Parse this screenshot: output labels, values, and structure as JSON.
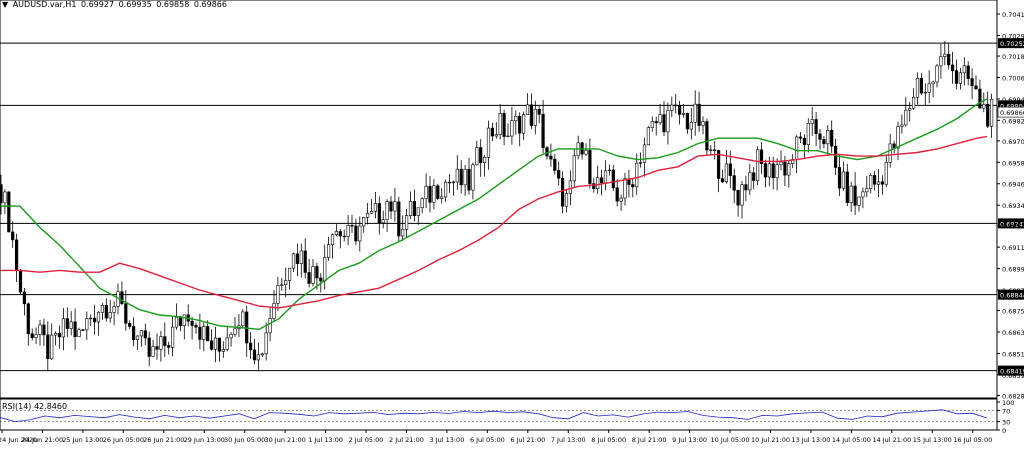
{
  "header": {
    "symbol": "AUDUSD.var,H1",
    "ohlc": [
      "0.69927",
      "0.69935",
      "0.69858",
      "0.69866"
    ]
  },
  "rsi_header": {
    "label": "RSI(14)",
    "value": "42.8460"
  },
  "colors": {
    "background": "#ffffff",
    "candle": "#000000",
    "ma_fast": "#1a9a1a",
    "ma_slow": "#e0203a",
    "rsi_line": "#2020c0",
    "levels": "#000000"
  },
  "chart_data": [
    {
      "type": "candlestick",
      "title": "AUDUSD.var,H1",
      "y_ticks": [
        "0.70415",
        "0.70295",
        "0.70180",
        "0.70060",
        "0.69940",
        "0.69820",
        "0.69705",
        "0.69585",
        "0.69465",
        "0.69345",
        "0.69230",
        "0.69110",
        "0.68990",
        "0.68870",
        "0.68755",
        "0.68635",
        "0.68515",
        "0.68395",
        "0.68280"
      ],
      "ylim": [
        0.6826,
        0.7046
      ],
      "x_tick_labels": [
        "24 Jun 2020",
        "24 Jun 21:00",
        "25 Jun 13:00",
        "26 Jun 05:00",
        "26 Jun 21:00",
        "29 Jun 13:00",
        "30 Jun 05:00",
        "30 Jun 21:00",
        "1 Jul 13:00",
        "2 Jul 05:00",
        "2 Jul 21:00",
        "3 Jul 13:00",
        "6 Jul 05:00",
        "6 Jul 21:00",
        "7 Jul 13:00",
        "8 Jul 05:00",
        "8 Jul 21:00",
        "9 Jul 13:00",
        "10 Jul 05:00",
        "10 Jul 21:00",
        "13 Jul 13:00",
        "14 Jul 05:00",
        "14 Jul 21:00",
        "15 Jul 13:00",
        "16 Jul 05:00"
      ],
      "horizontal_levels": [
        "0.70252",
        "0.69904",
        "0.69243",
        "0.68844",
        "0.68419"
      ],
      "current_price": "0.69866",
      "close_path": [
        [
          0,
          0.6946
        ],
        [
          10,
          0.6924
        ],
        [
          20,
          0.6888
        ],
        [
          30,
          0.6864
        ],
        [
          40,
          0.686
        ],
        [
          50,
          0.6852
        ],
        [
          60,
          0.6862
        ],
        [
          70,
          0.6868
        ],
        [
          80,
          0.686
        ],
        [
          90,
          0.6872
        ],
        [
          100,
          0.6878
        ],
        [
          110,
          0.688
        ],
        [
          120,
          0.6878
        ],
        [
          130,
          0.6868
        ],
        [
          140,
          0.6858
        ],
        [
          150,
          0.685
        ],
        [
          160,
          0.6853
        ],
        [
          170,
          0.686
        ],
        [
          180,
          0.687
        ],
        [
          190,
          0.6876
        ],
        [
          200,
          0.6866
        ],
        [
          210,
          0.6856
        ],
        [
          220,
          0.6853
        ],
        [
          230,
          0.6866
        ],
        [
          240,
          0.6874
        ],
        [
          250,
          0.6862
        ],
        [
          260,
          0.6848
        ],
        [
          270,
          0.6872
        ],
        [
          280,
          0.6892
        ],
        [
          290,
          0.6904
        ],
        [
          300,
          0.6908
        ],
        [
          310,
          0.6898
        ],
        [
          320,
          0.6894
        ],
        [
          330,
          0.692
        ],
        [
          340,
          0.692
        ],
        [
          350,
          0.6916
        ],
        [
          360,
          0.6922
        ],
        [
          370,
          0.6926
        ],
        [
          380,
          0.693
        ],
        [
          390,
          0.6938
        ],
        [
          400,
          0.6924
        ],
        [
          410,
          0.693
        ],
        [
          420,
          0.6932
        ],
        [
          430,
          0.694
        ],
        [
          440,
          0.6946
        ],
        [
          450,
          0.6948
        ],
        [
          460,
          0.6948
        ],
        [
          470,
          0.6946
        ],
        [
          480,
          0.6962
        ],
        [
          490,
          0.6974
        ],
        [
          500,
          0.698
        ],
        [
          510,
          0.6974
        ],
        [
          520,
          0.6982
        ],
        [
          530,
          0.6986
        ],
        [
          540,
          0.6982
        ],
        [
          550,
          0.696
        ],
        [
          560,
          0.6944
        ],
        [
          570,
          0.6936
        ],
        [
          580,
          0.6968
        ],
        [
          590,
          0.6956
        ],
        [
          600,
          0.6946
        ],
        [
          610,
          0.6948
        ],
        [
          620,
          0.694
        ],
        [
          630,
          0.6944
        ],
        [
          640,
          0.696
        ],
        [
          650,
          0.6974
        ],
        [
          660,
          0.6982
        ],
        [
          670,
          0.6984
        ],
        [
          680,
          0.6986
        ],
        [
          690,
          0.6982
        ],
        [
          700,
          0.6984
        ],
        [
          710,
          0.6964
        ],
        [
          720,
          0.6958
        ],
        [
          730,
          0.695
        ],
        [
          740,
          0.694
        ],
        [
          750,
          0.695
        ],
        [
          760,
          0.6958
        ],
        [
          770,
          0.6952
        ],
        [
          780,
          0.6958
        ],
        [
          790,
          0.6956
        ],
        [
          800,
          0.6968
        ],
        [
          810,
          0.6974
        ],
        [
          820,
          0.6976
        ],
        [
          830,
          0.6972
        ],
        [
          840,
          0.695
        ],
        [
          850,
          0.6942
        ],
        [
          860,
          0.6935
        ],
        [
          870,
          0.6948
        ],
        [
          880,
          0.6946
        ],
        [
          890,
          0.696
        ],
        [
          900,
          0.6972
        ],
        [
          910,
          0.6986
        ],
        [
          920,
          0.7004
        ],
        [
          930,
          0.6998
        ],
        [
          940,
          0.701
        ],
        [
          950,
          0.7022
        ],
        [
          960,
          0.7004
        ],
        [
          970,
          0.7006
        ],
        [
          980,
          0.6994
        ],
        [
          990,
          0.6986
        ]
      ],
      "series": [
        {
          "ma": [
            [
              0,
              0.6934
            ],
            [
              20,
              0.6934
            ],
            [
              40,
              0.6922
            ],
            [
              60,
              0.6912
            ],
            [
              80,
              0.69
            ],
            [
              100,
              0.6888
            ],
            [
              120,
              0.6882
            ],
            [
              140,
              0.6876
            ],
            [
              160,
              0.6873
            ],
            [
              180,
              0.6872
            ],
            [
              200,
              0.687
            ],
            [
              220,
              0.6867
            ],
            [
              240,
              0.6866
            ],
            [
              260,
              0.6865
            ],
            [
              280,
              0.6871
            ],
            [
              300,
              0.6882
            ],
            [
              320,
              0.689
            ],
            [
              340,
              0.6898
            ],
            [
              360,
              0.6902
            ],
            [
              380,
              0.6909
            ],
            [
              400,
              0.6914
            ],
            [
              420,
              0.692
            ],
            [
              440,
              0.6926
            ],
            [
              460,
              0.6932
            ],
            [
              480,
              0.6938
            ],
            [
              500,
              0.6946
            ],
            [
              520,
              0.6954
            ],
            [
              540,
              0.6962
            ],
            [
              560,
              0.6966
            ],
            [
              580,
              0.6966
            ],
            [
              600,
              0.6966
            ],
            [
              620,
              0.6962
            ],
            [
              640,
              0.696
            ],
            [
              660,
              0.6961
            ],
            [
              680,
              0.6964
            ],
            [
              700,
              0.6969
            ],
            [
              720,
              0.6972
            ],
            [
              740,
              0.6972
            ],
            [
              760,
              0.6972
            ],
            [
              780,
              0.6969
            ],
            [
              800,
              0.6965
            ],
            [
              820,
              0.6965
            ],
            [
              840,
              0.6962
            ],
            [
              860,
              0.696
            ],
            [
              880,
              0.6962
            ],
            [
              900,
              0.6967
            ],
            [
              920,
              0.6972
            ],
            [
              940,
              0.6977
            ],
            [
              960,
              0.6983
            ],
            [
              980,
              0.6991
            ],
            [
              990,
              0.6994
            ]
          ]
        },
        {
          "ma": [
            [
              0,
              0.6898
            ],
            [
              20,
              0.6898
            ],
            [
              40,
              0.6897
            ],
            [
              60,
              0.6898
            ],
            [
              80,
              0.6897
            ],
            [
              100,
              0.6897
            ],
            [
              120,
              0.6902
            ],
            [
              140,
              0.6899
            ],
            [
              160,
              0.6895
            ],
            [
              180,
              0.6891
            ],
            [
              200,
              0.6887
            ],
            [
              220,
              0.6884
            ],
            [
              240,
              0.6881
            ],
            [
              260,
              0.6878
            ],
            [
              280,
              0.6877
            ],
            [
              300,
              0.6879
            ],
            [
              320,
              0.6881
            ],
            [
              340,
              0.6884
            ],
            [
              360,
              0.6886
            ],
            [
              380,
              0.6888
            ],
            [
              400,
              0.6893
            ],
            [
              420,
              0.6898
            ],
            [
              440,
              0.6904
            ],
            [
              460,
              0.6909
            ],
            [
              480,
              0.6915
            ],
            [
              500,
              0.6922
            ],
            [
              520,
              0.6932
            ],
            [
              540,
              0.6938
            ],
            [
              560,
              0.6942
            ],
            [
              580,
              0.6945
            ],
            [
              600,
              0.6946
            ],
            [
              620,
              0.6948
            ],
            [
              640,
              0.695
            ],
            [
              660,
              0.6954
            ],
            [
              680,
              0.6956
            ],
            [
              700,
              0.6962
            ],
            [
              720,
              0.6963
            ],
            [
              740,
              0.6961
            ],
            [
              760,
              0.6959
            ],
            [
              780,
              0.6959
            ],
            [
              800,
              0.696
            ],
            [
              820,
              0.6962
            ],
            [
              840,
              0.6963
            ],
            [
              860,
              0.6962
            ],
            [
              880,
              0.6962
            ],
            [
              900,
              0.6963
            ],
            [
              920,
              0.6964
            ],
            [
              940,
              0.6966
            ],
            [
              960,
              0.6969
            ],
            [
              980,
              0.6972
            ],
            [
              990,
              0.6973
            ]
          ]
        }
      ]
    },
    {
      "type": "line",
      "title": "RSI(14)",
      "y_ticks": [
        "100",
        "70",
        "30",
        "0"
      ],
      "ylim": [
        0,
        100
      ],
      "levels": [
        70,
        30
      ],
      "values": [
        [
          0,
          45
        ],
        [
          15,
          30
        ],
        [
          30,
          36
        ],
        [
          45,
          50
        ],
        [
          60,
          44
        ],
        [
          75,
          52
        ],
        [
          90,
          48
        ],
        [
          105,
          44
        ],
        [
          120,
          55
        ],
        [
          135,
          46
        ],
        [
          150,
          40
        ],
        [
          165,
          52
        ],
        [
          180,
          44
        ],
        [
          195,
          50
        ],
        [
          210,
          42
        ],
        [
          225,
          50
        ],
        [
          240,
          58
        ],
        [
          255,
          40
        ],
        [
          270,
          62
        ],
        [
          285,
          60
        ],
        [
          300,
          56
        ],
        [
          315,
          50
        ],
        [
          330,
          62
        ],
        [
          345,
          58
        ],
        [
          360,
          60
        ],
        [
          375,
          63
        ],
        [
          390,
          55
        ],
        [
          405,
          60
        ],
        [
          420,
          58
        ],
        [
          435,
          63
        ],
        [
          450,
          59
        ],
        [
          465,
          66
        ],
        [
          480,
          62
        ],
        [
          495,
          67
        ],
        [
          510,
          62
        ],
        [
          525,
          65
        ],
        [
          540,
          58
        ],
        [
          555,
          44
        ],
        [
          570,
          40
        ],
        [
          585,
          62
        ],
        [
          600,
          50
        ],
        [
          615,
          54
        ],
        [
          630,
          46
        ],
        [
          645,
          57
        ],
        [
          660,
          64
        ],
        [
          675,
          62
        ],
        [
          690,
          66
        ],
        [
          705,
          52
        ],
        [
          720,
          46
        ],
        [
          735,
          44
        ],
        [
          750,
          38
        ],
        [
          765,
          52
        ],
        [
          780,
          50
        ],
        [
          795,
          58
        ],
        [
          810,
          61
        ],
        [
          825,
          64
        ],
        [
          840,
          42
        ],
        [
          855,
          38
        ],
        [
          870,
          50
        ],
        [
          885,
          47
        ],
        [
          900,
          60
        ],
        [
          915,
          64
        ],
        [
          930,
          68
        ],
        [
          945,
          72
        ],
        [
          960,
          58
        ],
        [
          975,
          60
        ],
        [
          990,
          43
        ]
      ]
    }
  ]
}
